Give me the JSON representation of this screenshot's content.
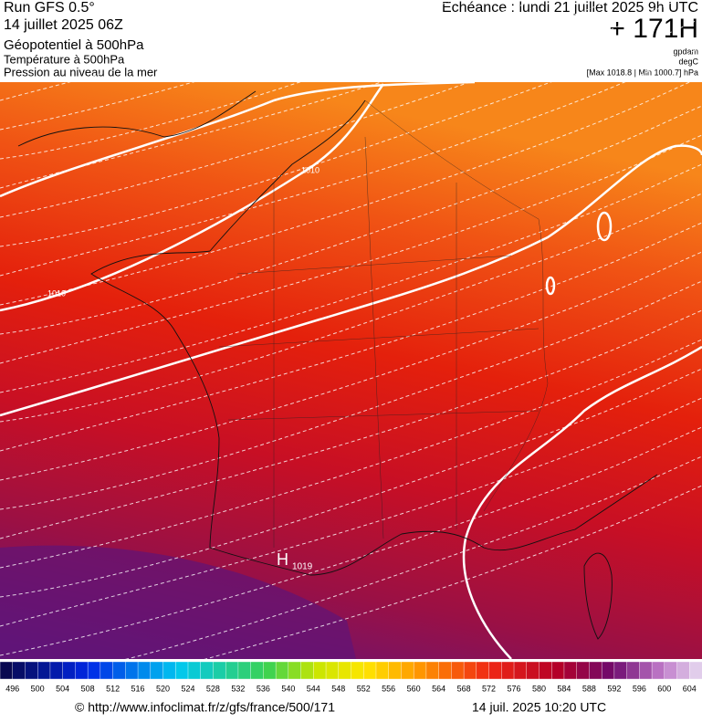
{
  "header": {
    "run": "Run GFS 0.5°",
    "date": "14 juillet 2025 06Z",
    "title": "Géopotentiel à 500hPa",
    "subtitle1": "Température à 500hPa",
    "subtitle2": "Pression au niveau de la mer",
    "echeance": "Echéance : lundi 21 juillet 2025 9h UTC",
    "offset": "+ 171H",
    "unit1": "gpdam",
    "unit2": "degC",
    "range": "[Max 1018.8 | Min 1000.7] hPa"
  },
  "map": {
    "isobar_labels": [
      "1010",
      "1010"
    ],
    "high": {
      "symbol": "H",
      "value": "1019"
    }
  },
  "colorbar": {
    "labels": [
      496,
      500,
      504,
      508,
      512,
      516,
      520,
      524,
      528,
      532,
      536,
      540,
      544,
      548,
      552,
      556,
      560,
      564,
      568,
      572,
      576,
      580,
      584,
      588,
      592,
      596,
      600,
      604
    ]
  },
  "footer": {
    "url": "© http://www.infoclimat.fr/z/gfs/france/500/171",
    "timestamp": "14 juil. 2025 10:20 UTC"
  }
}
